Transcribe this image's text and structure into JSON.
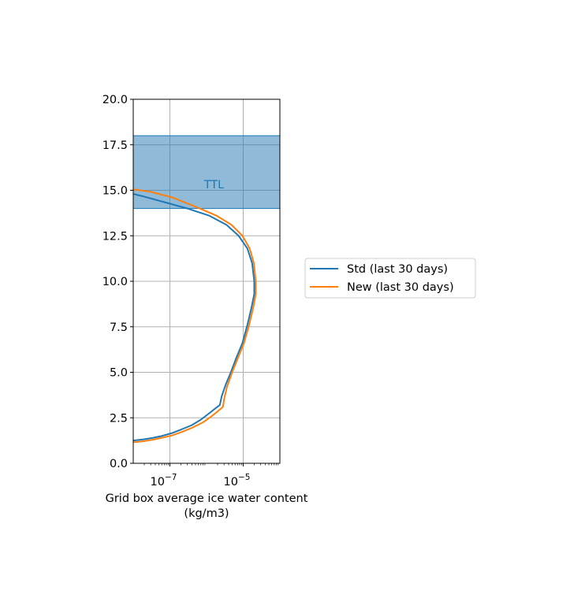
{
  "chart_data": {
    "type": "line",
    "title": "",
    "xlabel_line1": "Grid box average ice water content",
    "xlabel_line2": "(kg/m3)",
    "ylabel": "",
    "x_scale": "log",
    "xlim": [
      1e-08,
      0.0001
    ],
    "ylim": [
      0,
      20
    ],
    "grid": true,
    "x_ticks": [
      {
        "value": 1e-07,
        "base": "10",
        "exp": "−7"
      },
      {
        "value": 1e-05,
        "base": "10",
        "exp": "−5"
      }
    ],
    "y_ticks": [
      {
        "value": 0,
        "label": "0.0"
      },
      {
        "value": 2.5,
        "label": "2.5"
      },
      {
        "value": 5,
        "label": "5.0"
      },
      {
        "value": 7.5,
        "label": "7.5"
      },
      {
        "value": 10,
        "label": "10.0"
      },
      {
        "value": 12.5,
        "label": "12.5"
      },
      {
        "value": 15,
        "label": "15.0"
      },
      {
        "value": 17.5,
        "label": "17.5"
      },
      {
        "value": 20,
        "label": "20.0"
      }
    ],
    "band": {
      "label": "TTL",
      "y_from": 14,
      "y_to": 18,
      "color": "#1f77b4",
      "alpha": 0.5
    },
    "legend_position": "right",
    "series": [
      {
        "name": "Std (last 30 days)",
        "color": "#1f77b4",
        "points": [
          [
            1e-08,
            1.25
          ],
          [
            2e-08,
            1.32
          ],
          [
            3.5e-08,
            1.4
          ],
          [
            6e-08,
            1.5
          ],
          [
            1.1e-07,
            1.65
          ],
          [
            2e-07,
            1.85
          ],
          [
            4e-07,
            2.1
          ],
          [
            7e-07,
            2.4
          ],
          [
            1.1e-06,
            2.7
          ],
          [
            1.7e-06,
            3.0
          ],
          [
            2.3e-06,
            3.2
          ],
          [
            2.6e-06,
            3.7
          ],
          [
            3.3e-06,
            4.3
          ],
          [
            4.6e-06,
            5.0
          ],
          [
            6.5e-06,
            5.8
          ],
          [
            9.5e-06,
            6.6
          ],
          [
            1.3e-05,
            7.6
          ],
          [
            1.7e-05,
            8.6
          ],
          [
            2e-05,
            9.3
          ],
          [
            2e-05,
            10.0
          ],
          [
            1.75e-05,
            11.0
          ],
          [
            1.3e-05,
            11.8
          ],
          [
            7.5e-06,
            12.5
          ],
          [
            3.5e-06,
            13.1
          ],
          [
            1.2e-06,
            13.6
          ],
          [
            3e-07,
            14.0
          ],
          [
            7e-08,
            14.35
          ],
          [
            2e-08,
            14.65
          ],
          [
            1e-08,
            14.8
          ]
        ]
      },
      {
        "name": "New (last 30 days)",
        "color": "#ff7f0e",
        "points": [
          [
            1e-08,
            1.15
          ],
          [
            2e-08,
            1.22
          ],
          [
            3.5e-08,
            1.3
          ],
          [
            6e-08,
            1.4
          ],
          [
            1.1e-07,
            1.52
          ],
          [
            2e-07,
            1.7
          ],
          [
            4e-07,
            1.95
          ],
          [
            8e-07,
            2.25
          ],
          [
            1.3e-06,
            2.55
          ],
          [
            2e-06,
            2.85
          ],
          [
            2.8e-06,
            3.1
          ],
          [
            3e-06,
            3.5
          ],
          [
            3.6e-06,
            4.2
          ],
          [
            5e-06,
            5.0
          ],
          [
            7.2e-06,
            5.8
          ],
          [
            1.05e-05,
            6.6
          ],
          [
            1.45e-05,
            7.6
          ],
          [
            1.9e-05,
            8.6
          ],
          [
            2.2e-05,
            9.3
          ],
          [
            2.2e-05,
            10.0
          ],
          [
            1.95e-05,
            11.0
          ],
          [
            1.5e-05,
            11.8
          ],
          [
            9.5e-06,
            12.5
          ],
          [
            4.8e-06,
            13.1
          ],
          [
            1.9e-06,
            13.6
          ],
          [
            5e-07,
            14.1
          ],
          [
            1.2e-07,
            14.6
          ],
          [
            3e-08,
            14.92
          ],
          [
            1e-08,
            15.05
          ]
        ]
      }
    ]
  }
}
